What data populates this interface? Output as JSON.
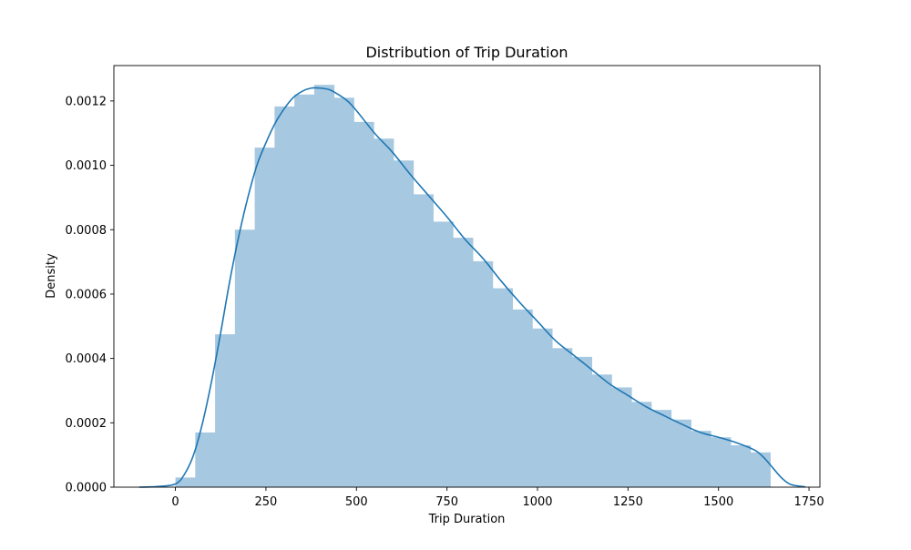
{
  "chart_data": {
    "type": "bar",
    "subtype": "histogram-with-kde",
    "title": "Distribution of Trip Duration",
    "xlabel": "Trip Duration",
    "ylabel": "Density",
    "xlim": [
      -170,
      1780
    ],
    "ylim": [
      0,
      0.00131
    ],
    "xticks": [
      0,
      250,
      500,
      750,
      1000,
      1250,
      1500,
      1750
    ],
    "xtick_labels": [
      "0",
      "250",
      "500",
      "750",
      "1000",
      "1250",
      "1500",
      "1750"
    ],
    "yticks": [
      0,
      0.0002,
      0.0004,
      0.0006,
      0.0008,
      0.001,
      0.0012
    ],
    "ytick_labels": [
      "0.0000",
      "0.0002",
      "0.0004",
      "0.0006",
      "0.0008",
      "0.0010",
      "0.0012"
    ],
    "grid": false,
    "bins": {
      "start": 0,
      "end": 1643,
      "values": [
        3e-05,
        0.00017,
        0.000475,
        0.0008,
        0.001055,
        0.001183,
        0.00122,
        0.00125,
        0.00121,
        0.001135,
        0.001083,
        0.001015,
        0.00091,
        0.000825,
        0.000775,
        0.000702,
        0.000618,
        0.000552,
        0.000493,
        0.000432,
        0.000405,
        0.00035,
        0.00031,
        0.000265,
        0.00024,
        0.00021,
        0.000175,
        0.000155,
        0.00013,
        0.000108
      ]
    },
    "kde": {
      "x": [
        -100,
        -50,
        0,
        25,
        50,
        75,
        100,
        125,
        150,
        175,
        200,
        225,
        250,
        275,
        300,
        325,
        350,
        375,
        400,
        425,
        450,
        475,
        500,
        550,
        600,
        650,
        700,
        750,
        800,
        850,
        900,
        950,
        1000,
        1050,
        1100,
        1150,
        1200,
        1250,
        1300,
        1350,
        1400,
        1450,
        1500,
        1550,
        1600,
        1625,
        1650,
        1675,
        1700,
        1740
      ],
      "y": [
        0,
        2e-06,
        1e-05,
        4e-05,
        0.0001,
        0.0002,
        0.00033,
        0.00048,
        0.00064,
        0.00078,
        0.0009,
        0.001,
        0.00107,
        0.00113,
        0.001175,
        0.00121,
        0.00123,
        0.00124,
        0.00124,
        0.001235,
        0.00122,
        0.0012,
        0.00117,
        0.0011,
        0.00104,
        0.00097,
        0.000905,
        0.00084,
        0.00077,
        0.00071,
        0.00064,
        0.000575,
        0.000515,
        0.000455,
        0.00041,
        0.000365,
        0.00032,
        0.000285,
        0.00025,
        0.000222,
        0.000195,
        0.00017,
        0.000155,
        0.000138,
        0.000115,
        9.2e-05,
        6e-05,
        2.8e-05,
        8e-06,
        1e-06
      ]
    },
    "colors": {
      "bars": "#a6c8e0",
      "kde": "#1f77b4",
      "axes": "#000000",
      "background": "#ffffff"
    }
  }
}
